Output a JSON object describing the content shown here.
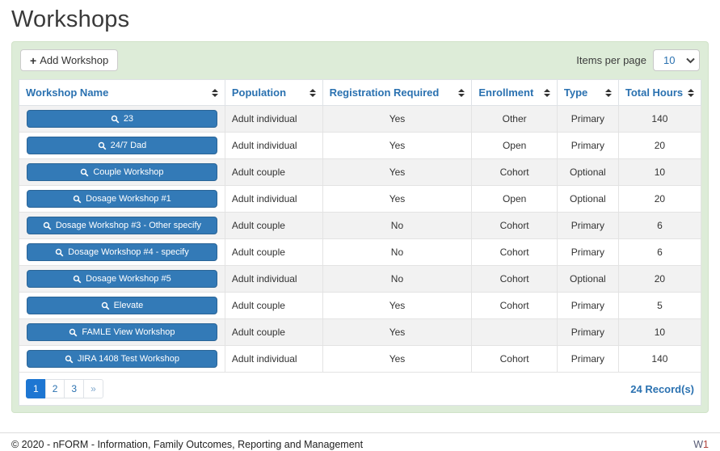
{
  "page": {
    "title": "Workshops"
  },
  "toolbar": {
    "add_button_label": "Add Workshop",
    "plus_glyph": "+",
    "items_per_page_label": "Items per page",
    "items_per_page_value": "10"
  },
  "table": {
    "columns": [
      {
        "label": "Workshop Name"
      },
      {
        "label": "Population"
      },
      {
        "label": "Registration Required"
      },
      {
        "label": "Enrollment"
      },
      {
        "label": "Type"
      },
      {
        "label": "Total Hours"
      }
    ],
    "rows": [
      {
        "name": "23",
        "population": "Adult individual",
        "registration_required": "Yes",
        "enrollment": "Other",
        "type": "Primary",
        "total_hours": "140"
      },
      {
        "name": "24/7 Dad",
        "population": "Adult individual",
        "registration_required": "Yes",
        "enrollment": "Open",
        "type": "Primary",
        "total_hours": "20"
      },
      {
        "name": "Couple Workshop",
        "population": "Adult couple",
        "registration_required": "Yes",
        "enrollment": "Cohort",
        "type": "Optional",
        "total_hours": "10"
      },
      {
        "name": "Dosage Workshop #1",
        "population": "Adult individual",
        "registration_required": "Yes",
        "enrollment": "Open",
        "type": "Optional",
        "total_hours": "20"
      },
      {
        "name": "Dosage Workshop #3 - Other specify",
        "population": "Adult couple",
        "registration_required": "No",
        "enrollment": "Cohort",
        "type": "Primary",
        "total_hours": "6"
      },
      {
        "name": "Dosage Workshop #4 - specify",
        "population": "Adult couple",
        "registration_required": "No",
        "enrollment": "Cohort",
        "type": "Primary",
        "total_hours": "6"
      },
      {
        "name": "Dosage Workshop #5",
        "population": "Adult individual",
        "registration_required": "No",
        "enrollment": "Cohort",
        "type": "Optional",
        "total_hours": "20"
      },
      {
        "name": "Elevate",
        "population": "Adult couple",
        "registration_required": "Yes",
        "enrollment": "Cohort",
        "type": "Primary",
        "total_hours": "5"
      },
      {
        "name": "FAMLE View Workshop",
        "population": "Adult couple",
        "registration_required": "Yes",
        "enrollment": "",
        "type": "Primary",
        "total_hours": "10"
      },
      {
        "name": "JIRA 1408 Test Workshop",
        "population": "Adult individual",
        "registration_required": "Yes",
        "enrollment": "Cohort",
        "type": "Primary",
        "total_hours": "140"
      }
    ]
  },
  "pagination": {
    "pages": [
      "1",
      "2",
      "3",
      "»"
    ],
    "active_page": "1",
    "records_label": "24 Record(s)"
  },
  "footer": {
    "copyright": "© 2020 - nFORM - Information, Family Outcomes, Reporting and Management",
    "version_prefix": "W",
    "version_number": "1"
  },
  "icons": {
    "search_icon": "magnifier",
    "sort_icon": "up-down-triangles",
    "chevron_down_icon": "chevron-down",
    "plus_icon": "plus"
  },
  "colors": {
    "accent_blue": "#337ab7",
    "header_link_blue": "#2a71b0",
    "active_page_blue": "#1d76d2",
    "panel_green": "#ddecd8",
    "row_stripe_gray": "#f2f2f2"
  }
}
